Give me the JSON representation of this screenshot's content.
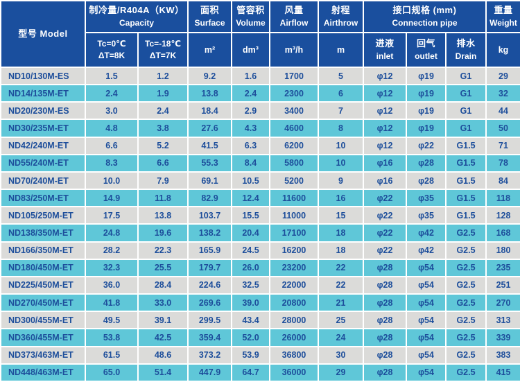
{
  "colors": {
    "header_bg": "#1a4f9e",
    "row_gray": "#dbdbd9",
    "row_cyan": "#5fc7d8",
    "text_navy": "#1d4e9b",
    "grid_border": "#ffffff"
  },
  "header": {
    "model": "型号 Model",
    "capacity": {
      "zh": "制冷量/R404A（KW）",
      "en": "Capacity",
      "sub1": {
        "line1": "Tc=0℃",
        "line2": "ΔT=8K"
      },
      "sub2": {
        "line1": "Tc=-18℃",
        "line2": "ΔT=7K"
      }
    },
    "surface": {
      "zh": "面积",
      "en": "Surface",
      "unit": "m²"
    },
    "volume": {
      "zh": "管容积",
      "en": "Volume",
      "unit": "dm³"
    },
    "airflow": {
      "zh": "风量",
      "en": "Airflow",
      "unit": "m³/h"
    },
    "airthrow": {
      "zh": "射程",
      "en": "Airthrow",
      "unit": "m"
    },
    "connection": {
      "zh": "接口规格 (mm)",
      "en": "Connection pipe",
      "inlet": {
        "zh": "进液",
        "en": "inlet"
      },
      "outlet": {
        "zh": "回气",
        "en": "outlet"
      },
      "drain": {
        "zh": "排水",
        "en": "Drain"
      }
    },
    "weight": {
      "zh": "重量",
      "en": "Weight",
      "unit": "kg"
    }
  },
  "rows": [
    [
      "ND10/130M-ES",
      "1.5",
      "1.2",
      "9.2",
      "1.6",
      "1700",
      "5",
      "φ12",
      "φ19",
      "G1",
      "29"
    ],
    [
      "ND14/135M-ET",
      "2.4",
      "1.9",
      "13.8",
      "2.4",
      "2300",
      "6",
      "φ12",
      "φ19",
      "G1",
      "32"
    ],
    [
      "ND20/230M-ES",
      "3.0",
      "2.4",
      "18.4",
      "2.9",
      "3400",
      "7",
      "φ12",
      "φ19",
      "G1",
      "44"
    ],
    [
      "ND30/235M-ET",
      "4.8",
      "3.8",
      "27.6",
      "4.3",
      "4600",
      "8",
      "φ12",
      "φ19",
      "G1",
      "50"
    ],
    [
      "ND42/240M-ET",
      "6.6",
      "5.2",
      "41.5",
      "6.3",
      "6200",
      "10",
      "φ12",
      "φ22",
      "G1.5",
      "71"
    ],
    [
      "ND55/240M-ET",
      "8.3",
      "6.6",
      "55.3",
      "8.4",
      "5800",
      "10",
      "φ16",
      "φ28",
      "G1.5",
      "78"
    ],
    [
      "ND70/240M-ET",
      "10.0",
      "7.9",
      "69.1",
      "10.5",
      "5200",
      "9",
      "φ16",
      "φ28",
      "G1.5",
      "84"
    ],
    [
      "ND83/250M-ET",
      "14.9",
      "11.8",
      "82.9",
      "12.4",
      "11600",
      "16",
      "φ22",
      "φ35",
      "G1.5",
      "118"
    ],
    [
      "ND105/250M-ET",
      "17.5",
      "13.8",
      "103.7",
      "15.5",
      "11000",
      "15",
      "φ22",
      "φ35",
      "G1.5",
      "128"
    ],
    [
      "ND138/350M-ET",
      "24.8",
      "19.6",
      "138.2",
      "20.4",
      "17100",
      "18",
      "φ22",
      "φ42",
      "G2.5",
      "168"
    ],
    [
      "ND166/350M-ET",
      "28.2",
      "22.3",
      "165.9",
      "24.5",
      "16200",
      "18",
      "φ22",
      "φ42",
      "G2.5",
      "180"
    ],
    [
      "ND180/450M-ET",
      "32.3",
      "25.5",
      "179.7",
      "26.0",
      "23200",
      "22",
      "φ28",
      "φ54",
      "G2.5",
      "235"
    ],
    [
      "ND225/450M-ET",
      "36.0",
      "28.4",
      "224.6",
      "32.5",
      "22000",
      "22",
      "φ28",
      "φ54",
      "G2.5",
      "251"
    ],
    [
      "ND270/450M-ET",
      "41.8",
      "33.0",
      "269.6",
      "39.0",
      "20800",
      "21",
      "φ28",
      "φ54",
      "G2.5",
      "270"
    ],
    [
      "ND300/455M-ET",
      "49.5",
      "39.1",
      "299.5",
      "43.4",
      "28000",
      "25",
      "φ28",
      "φ54",
      "G2.5",
      "313"
    ],
    [
      "ND360/455M-ET",
      "53.8",
      "42.5",
      "359.4",
      "52.0",
      "26000",
      "24",
      "φ28",
      "φ54",
      "G2.5",
      "339"
    ],
    [
      "ND373/463M-ET",
      "61.5",
      "48.6",
      "373.2",
      "53.9",
      "36800",
      "30",
      "φ28",
      "φ54",
      "G2.5",
      "383"
    ],
    [
      "ND448/463M-ET",
      "65.0",
      "51.4",
      "447.9",
      "64.7",
      "36000",
      "29",
      "φ28",
      "φ54",
      "G2.5",
      "415"
    ]
  ]
}
